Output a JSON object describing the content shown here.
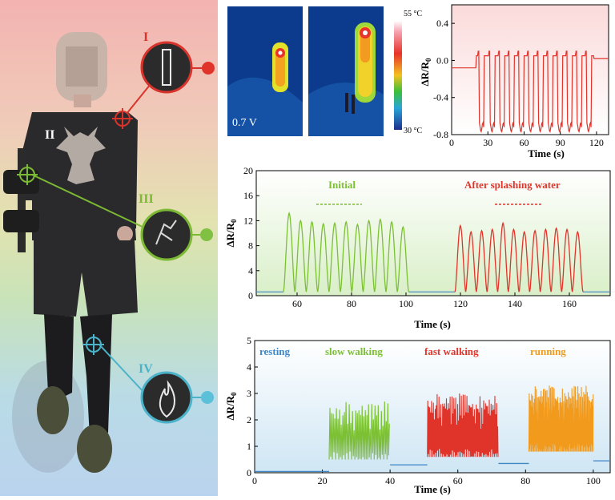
{
  "left_panel": {
    "labels": [
      "I",
      "II",
      "III",
      "IV"
    ],
    "colors": {
      "I": "#d9342b",
      "II": "#ffffff",
      "III": "#7cb934",
      "IV": "#4ab2c9"
    }
  },
  "thermal": {
    "voltage_label": "0.7 V",
    "scale_max": "55 °C",
    "scale_min": "30 °C"
  },
  "chart_data": [
    {
      "type": "line",
      "panel": "a",
      "xlabel": "Time (s)",
      "ylabel": "ΔR/R",
      "ylabel_sub": "0",
      "xlim": [
        0,
        130
      ],
      "ylim": [
        -0.8,
        0.6
      ],
      "xticks": [
        "0",
        "30",
        "60",
        "90",
        "120"
      ],
      "yticks": [
        "0.4",
        "0.0",
        "-0.4",
        "-0.8"
      ],
      "series": [
        {
          "color": "#e0342b",
          "pulses_start": [
            22,
            31,
            39,
            47,
            55,
            63,
            71,
            79,
            87,
            95,
            103,
            111
          ],
          "baseline": -0.08,
          "peak": 0.1,
          "trough": -0.72
        }
      ]
    },
    {
      "type": "line",
      "panel": "b",
      "xlabel": "Time (s)",
      "ylabel": "ΔR/R",
      "ylabel_sub": "0",
      "xlim": [
        45,
        175
      ],
      "ylim": [
        0,
        20
      ],
      "xticks": [
        "60",
        "80",
        "100",
        "120",
        "140",
        "160"
      ],
      "yticks": [
        "0",
        "4",
        "8",
        "12",
        "16",
        "20"
      ],
      "annotations": [
        "Initial",
        "After splashing water"
      ],
      "series": [
        {
          "name": "Initial",
          "color": "#7cc034",
          "x_start": 55,
          "x_end": 101,
          "peaks": [
            13.2,
            12,
            11.8,
            11.5,
            11.6,
            11.8,
            11.4,
            12,
            12.2,
            11.8,
            11
          ]
        },
        {
          "name": "After splashing water",
          "color": "#e0342b",
          "x_start": 118,
          "x_end": 165,
          "peaks": [
            11.2,
            10.2,
            10.4,
            10.6,
            11.6,
            10.6,
            10.2,
            10.4,
            10.6,
            10.8,
            10.6,
            10.2
          ]
        }
      ]
    },
    {
      "type": "line",
      "panel": "c",
      "xlabel": "Time (s)",
      "ylabel": "ΔR/R",
      "ylabel_sub": "0",
      "xlim": [
        0,
        105
      ],
      "ylim": [
        0,
        5
      ],
      "xticks": [
        "0",
        "20",
        "40",
        "60",
        "80",
        "100"
      ],
      "yticks": [
        "0",
        "1",
        "2",
        "3",
        "4",
        "5"
      ],
      "annotations": [
        "resting",
        "slow walking",
        "fast walking",
        "running"
      ],
      "series": [
        {
          "name": "resting",
          "color": "#3f86c6",
          "x_start": 0,
          "x_end": 22
        },
        {
          "name": "slow walking",
          "color": "#7cc034",
          "x_start": 22,
          "x_end": 40,
          "peak": 2.7
        },
        {
          "name": "fast walking",
          "color": "#e0342b",
          "x_start": 51,
          "x_end": 72,
          "peak": 3.0
        },
        {
          "name": "running",
          "color": "#f29a1c",
          "x_start": 81,
          "x_end": 100,
          "peak": 3.3
        }
      ]
    }
  ]
}
